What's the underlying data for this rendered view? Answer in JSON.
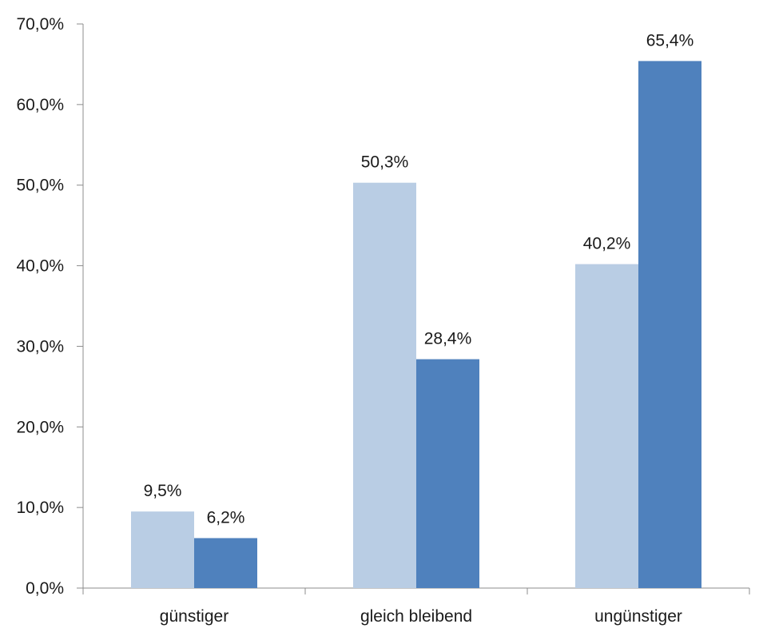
{
  "chart_data": {
    "type": "bar",
    "categories": [
      "günstiger",
      "gleich bleibend",
      "ungünstiger"
    ],
    "series": [
      {
        "values": [
          9.5,
          50.3,
          40.2
        ],
        "labels": [
          "9,5%",
          "50,3%",
          "40,2%"
        ],
        "color": "#b9cde4"
      },
      {
        "values": [
          6.2,
          28.4,
          65.4
        ],
        "labels": [
          "6,2%",
          "28,4%",
          "65,4%"
        ],
        "color": "#4f81bd"
      }
    ],
    "ylim": [
      0,
      70
    ],
    "yticks": [
      0,
      10,
      20,
      30,
      40,
      50,
      60,
      70
    ],
    "ytick_labels": [
      "0,0%",
      "10,0%",
      "20,0%",
      "30,0%",
      "40,0%",
      "50,0%",
      "60,0%",
      "70,0%"
    ],
    "axis_color": "#8c8c8c",
    "grid": false,
    "legend": "none"
  }
}
